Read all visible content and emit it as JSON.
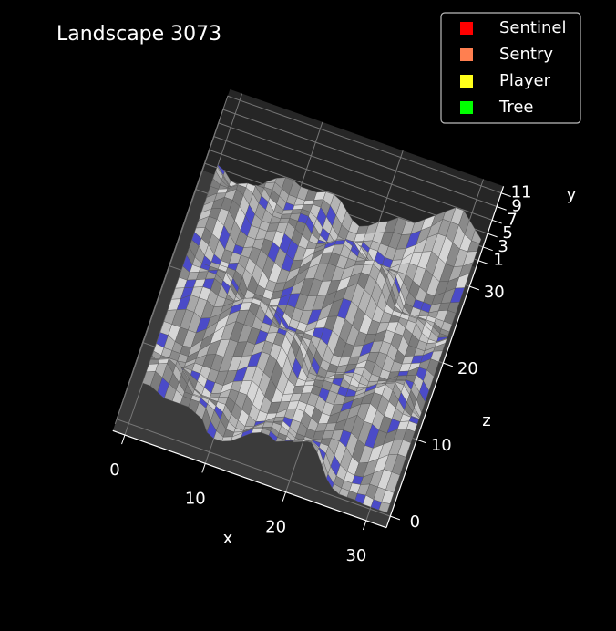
{
  "chart_data": {
    "type": "surface3d",
    "title": "Landscape 3073",
    "x_label": "x",
    "y_label": "y",
    "z_label": "z",
    "xlim": [
      -1.5,
      32.5
    ],
    "zlim": [
      -1.5,
      32.5
    ],
    "ylim": [
      0,
      12
    ],
    "xticks": [
      0,
      10,
      20,
      30
    ],
    "zticks": [
      0,
      10,
      20,
      30
    ],
    "yticks": [
      1,
      3,
      5,
      7,
      9,
      11
    ],
    "legend_position": "upper right",
    "series": [
      {
        "name": "Sentinel",
        "color": "#ff0000"
      },
      {
        "name": "Sentry",
        "color": "#ff7f50"
      },
      {
        "name": "Player",
        "color": "#ffff1a"
      },
      {
        "name": "Tree",
        "color": "#00ff00"
      }
    ]
  }
}
